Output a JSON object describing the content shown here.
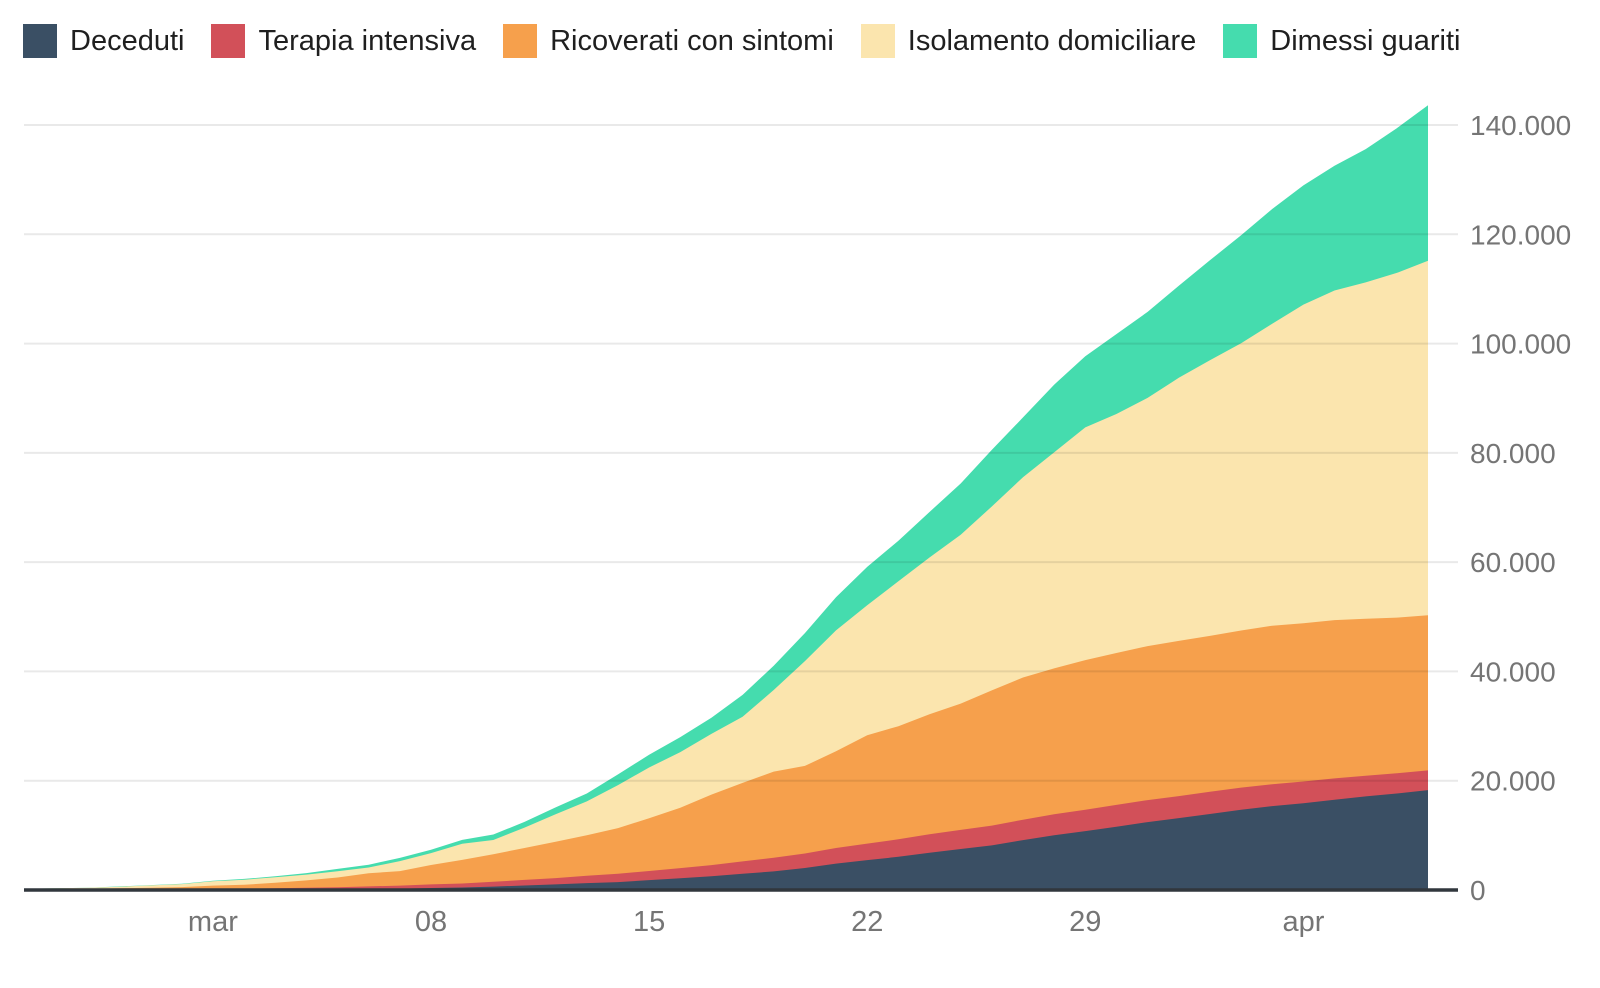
{
  "chart_data": {
    "type": "area",
    "stacked": true,
    "title": "",
    "xlabel": "",
    "ylabel": "",
    "legend_position": "top-left",
    "grid": "horizontal",
    "background_color": "#ffffff",
    "axis_line_color": "#31373d",
    "grid_line_color": "rgba(0,0,0,0.085)",
    "tick_label_color": "#757575",
    "legend_text_color": "#1f1f1f",
    "ylim": [
      0,
      143626
    ],
    "x": [
      "2020-02-24",
      "2020-02-25",
      "2020-02-26",
      "2020-02-27",
      "2020-02-28",
      "2020-02-29",
      "2020-03-01",
      "2020-03-02",
      "2020-03-03",
      "2020-03-04",
      "2020-03-05",
      "2020-03-06",
      "2020-03-07",
      "2020-03-08",
      "2020-03-09",
      "2020-03-10",
      "2020-03-11",
      "2020-03-12",
      "2020-03-13",
      "2020-03-14",
      "2020-03-15",
      "2020-03-16",
      "2020-03-17",
      "2020-03-18",
      "2020-03-19",
      "2020-03-20",
      "2020-03-21",
      "2020-03-22",
      "2020-03-23",
      "2020-03-24",
      "2020-03-25",
      "2020-03-26",
      "2020-03-27",
      "2020-03-28",
      "2020-03-29",
      "2020-03-30",
      "2020-03-31",
      "2020-04-01",
      "2020-04-02",
      "2020-04-03",
      "2020-04-04",
      "2020-04-05",
      "2020-04-06",
      "2020-04-07",
      "2020-04-08",
      "2020-04-09"
    ],
    "series": [
      {
        "name": "Deceduti",
        "color": "#3a4f64",
        "values": [
          7,
          10,
          12,
          17,
          21,
          29,
          34,
          52,
          79,
          107,
          148,
          197,
          233,
          366,
          463,
          631,
          827,
          1016,
          1266,
          1441,
          1809,
          2158,
          2503,
          2978,
          3405,
          4032,
          4825,
          5476,
          6077,
          6820,
          7503,
          8165,
          9134,
          10023,
          10779,
          11591,
          12428,
          13155,
          13915,
          14681,
          15362,
          15887,
          16523,
          17127,
          17669,
          18279
        ]
      },
      {
        "name": "Terapia intensiva",
        "color": "#d25059",
        "values": [
          26,
          35,
          36,
          56,
          64,
          105,
          140,
          166,
          229,
          295,
          351,
          462,
          567,
          650,
          733,
          877,
          1028,
          1153,
          1328,
          1518,
          1672,
          1851,
          2060,
          2257,
          2498,
          2655,
          2857,
          3009,
          3204,
          3396,
          3489,
          3612,
          3732,
          3856,
          3906,
          3981,
          4023,
          4035,
          4053,
          4068,
          3994,
          3977,
          3898,
          3792,
          3693,
          3605
        ]
      },
      {
        "name": "Ricoverati con sintomi",
        "color": "#f6a04c",
        "values": [
          101,
          114,
          128,
          248,
          345,
          401,
          639,
          742,
          1034,
          1346,
          1790,
          2394,
          2651,
          3557,
          4316,
          5038,
          5838,
          6650,
          7426,
          8372,
          9663,
          11025,
          12894,
          14363,
          15757,
          16020,
          17708,
          19846,
          20692,
          21937,
          23112,
          24753,
          26029,
          26676,
          27386,
          27795,
          28192,
          28403,
          28540,
          28741,
          29010,
          28949,
          28976,
          28718,
          28485,
          28399
        ]
      },
      {
        "name": "Isolamento domiciliare",
        "color": "#fbe5ae",
        "values": [
          94,
          162,
          221,
          284,
          412,
          543,
          798,
          927,
          1000,
          1065,
          1155,
          1060,
          1843,
          2180,
          2936,
          2599,
          3724,
          5036,
          6201,
          7860,
          9268,
          10197,
          11108,
          12090,
          14935,
          19185,
          22116,
          23783,
          26522,
          28697,
          30920,
          33648,
          36653,
          39533,
          42588,
          43752,
          45420,
          48134,
          50456,
          52579,
          55270,
          58320,
          60313,
          61557,
          63084,
          64873
        ]
      },
      {
        "name": "Dimessi guariti",
        "color": "#45dcae",
        "values": [
          1,
          1,
          3,
          45,
          46,
          50,
          83,
          149,
          160,
          276,
          414,
          523,
          589,
          622,
          724,
          1004,
          1045,
          1258,
          1439,
          1966,
          2335,
          2749,
          2941,
          4025,
          4440,
          5129,
          6072,
          7024,
          7432,
          8326,
          9362,
          10361,
          10950,
          12384,
          13030,
          14620,
          15729,
          16847,
          18278,
          19758,
          20996,
          21815,
          22837,
          24392,
          26491,
          28470
        ]
      }
    ],
    "x_ticks": [
      {
        "index": 6,
        "label": "mar"
      },
      {
        "index": 13,
        "label": "08"
      },
      {
        "index": 20,
        "label": "15"
      },
      {
        "index": 27,
        "label": "22"
      },
      {
        "index": 34,
        "label": "29"
      },
      {
        "index": 41,
        "label": "apr"
      }
    ],
    "y_ticks": [
      {
        "value": 0,
        "label": "0"
      },
      {
        "value": 20000,
        "label": "20.000"
      },
      {
        "value": 40000,
        "label": "40.000"
      },
      {
        "value": 60000,
        "label": "60.000"
      },
      {
        "value": 80000,
        "label": "80.000"
      },
      {
        "value": 100000,
        "label": "100.000"
      },
      {
        "value": 120000,
        "label": "120.000"
      },
      {
        "value": 140000,
        "label": "140.000"
      }
    ]
  }
}
